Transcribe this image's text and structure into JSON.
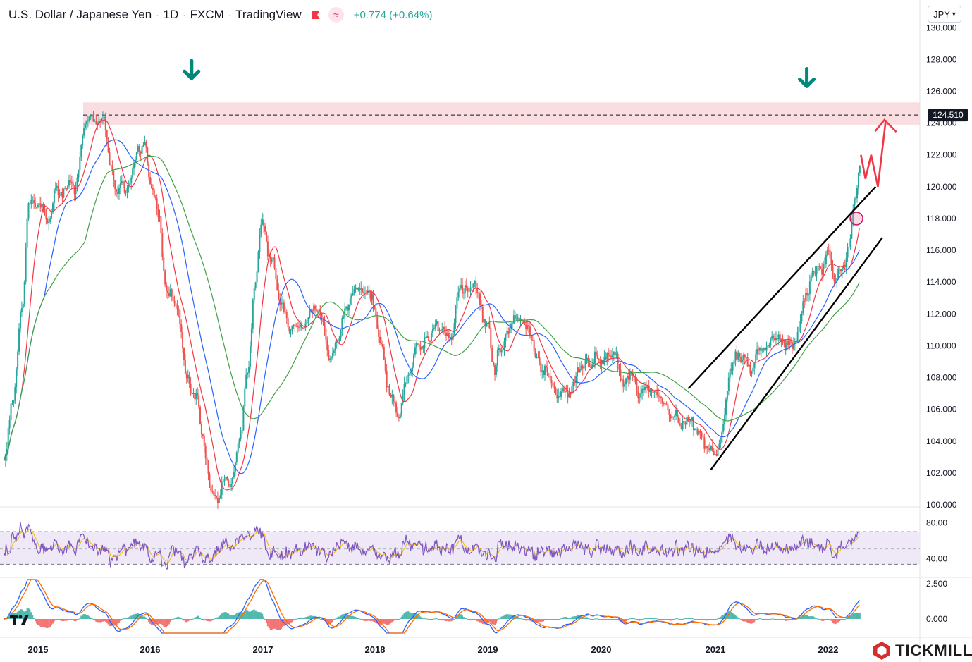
{
  "header": {
    "symbol": "U.S. Dollar / Japanese Yen",
    "interval": "1D",
    "exchange": "FXCM",
    "source": "TradingView",
    "change": "+0.774 (+0.64%)"
  },
  "currency_button": {
    "label": "JPY"
  },
  "watermark": {
    "brand": "TICKMILL"
  },
  "colors": {
    "candle_up": "#26a69a",
    "candle_down": "#ef5350",
    "ma_fast": "#f23645",
    "ma_mid": "#2962ff",
    "ma_slow": "#43a047",
    "rsi": "#7e57c2",
    "rsi_signal": "#f5b800",
    "zone_fill": "#f8d7da",
    "forecast": "#f23645"
  },
  "chart_data": [
    {
      "type": "candlestick",
      "name": "price",
      "title": "U.S. Dollar / Japanese Yen",
      "ylim": [
        100,
        130.5
      ],
      "yticks": [
        "100.000",
        "102.000",
        "104.000",
        "106.000",
        "108.000",
        "110.000",
        "112.000",
        "114.000",
        "116.000",
        "118.000",
        "120.000",
        "122.000",
        "124.000",
        "126.000",
        "128.000",
        "130.000"
      ],
      "xticks": [
        "2015",
        "2016",
        "2017",
        "2018",
        "2019",
        "2020",
        "2021",
        "2022"
      ],
      "x_range": [
        2014.7,
        2023.0
      ],
      "close_path": [
        [
          2014.7,
          103.0
        ],
        [
          2014.78,
          107.0
        ],
        [
          2014.86,
          112.0
        ],
        [
          2014.92,
          119.0
        ],
        [
          2015.0,
          119.5
        ],
        [
          2015.08,
          118.0
        ],
        [
          2015.16,
          120.0
        ],
        [
          2015.24,
          119.8
        ],
        [
          2015.32,
          119.5
        ],
        [
          2015.4,
          123.8
        ],
        [
          2015.46,
          124.3
        ],
        [
          2015.52,
          123.5
        ],
        [
          2015.58,
          124.2
        ],
        [
          2015.64,
          121.5
        ],
        [
          2015.7,
          120.0
        ],
        [
          2015.8,
          120.5
        ],
        [
          2015.88,
          122.8
        ],
        [
          2015.94,
          122.8
        ],
        [
          2016.0,
          120.0
        ],
        [
          2016.06,
          118.0
        ],
        [
          2016.14,
          113.5
        ],
        [
          2016.24,
          112.5
        ],
        [
          2016.32,
          108.5
        ],
        [
          2016.4,
          106.5
        ],
        [
          2016.46,
          103.5
        ],
        [
          2016.54,
          101.5
        ],
        [
          2016.62,
          101.5
        ],
        [
          2016.7,
          101.0
        ],
        [
          2016.78,
          104.0
        ],
        [
          2016.86,
          108.5
        ],
        [
          2016.92,
          113.0
        ],
        [
          2016.98,
          117.5
        ],
        [
          2017.06,
          114.5
        ],
        [
          2017.14,
          112.5
        ],
        [
          2017.24,
          110.5
        ],
        [
          2017.32,
          111.5
        ],
        [
          2017.42,
          113.0
        ],
        [
          2017.5,
          112.5
        ],
        [
          2017.58,
          109.5
        ],
        [
          2017.66,
          110.5
        ],
        [
          2017.74,
          112.5
        ],
        [
          2017.84,
          113.5
        ],
        [
          2017.94,
          113.0
        ],
        [
          2018.04,
          110.5
        ],
        [
          2018.12,
          107.0
        ],
        [
          2018.2,
          106.0
        ],
        [
          2018.28,
          108.5
        ],
        [
          2018.36,
          110.0
        ],
        [
          2018.46,
          110.5
        ],
        [
          2018.54,
          111.5
        ],
        [
          2018.64,
          111.0
        ],
        [
          2018.74,
          113.0
        ],
        [
          2018.84,
          113.5
        ],
        [
          2018.96,
          111.0
        ],
        [
          2019.04,
          108.5
        ],
        [
          2019.12,
          110.5
        ],
        [
          2019.22,
          111.5
        ],
        [
          2019.32,
          111.0
        ],
        [
          2019.42,
          108.5
        ],
        [
          2019.5,
          108.0
        ],
        [
          2019.6,
          106.5
        ],
        [
          2019.7,
          107.5
        ],
        [
          2019.8,
          108.5
        ],
        [
          2019.9,
          109.0
        ],
        [
          2020.0,
          109.5
        ],
        [
          2020.1,
          110.0
        ],
        [
          2020.2,
          107.5
        ],
        [
          2020.26,
          108.5
        ],
        [
          2020.34,
          107.0
        ],
        [
          2020.44,
          107.5
        ],
        [
          2020.54,
          106.0
        ],
        [
          2020.64,
          105.5
        ],
        [
          2020.74,
          105.0
        ],
        [
          2020.84,
          104.5
        ],
        [
          2020.94,
          103.5
        ],
        [
          2021.0,
          103.2
        ],
        [
          2021.06,
          105.0
        ],
        [
          2021.14,
          108.5
        ],
        [
          2021.22,
          109.5
        ],
        [
          2021.3,
          108.8
        ],
        [
          2021.4,
          110.0
        ],
        [
          2021.5,
          110.5
        ],
        [
          2021.6,
          109.8
        ],
        [
          2021.7,
          110.0
        ],
        [
          2021.78,
          112.5
        ],
        [
          2021.86,
          114.0
        ],
        [
          2021.92,
          113.5
        ],
        [
          2022.0,
          115.5
        ],
        [
          2022.06,
          114.5
        ],
        [
          2022.12,
          115.0
        ],
        [
          2022.18,
          116.5
        ],
        [
          2022.24,
          119.0
        ],
        [
          2022.28,
          121.5
        ]
      ],
      "resistance_zone": [
        123.9,
        125.3
      ],
      "level_line": {
        "value": 124.51,
        "label": "124.510"
      },
      "channel_lines": [
        {
          "from": [
            2020.76,
            107.3
          ],
          "to": [
            2022.42,
            120.0
          ]
        },
        {
          "from": [
            2020.96,
            102.2
          ],
          "to": [
            2022.48,
            116.8
          ]
        }
      ],
      "forecast_path": [
        [
          2022.29,
          122.0
        ],
        [
          2022.33,
          120.5
        ],
        [
          2022.38,
          122.0
        ],
        [
          2022.44,
          120.0
        ],
        [
          2022.51,
          124.2
        ]
      ],
      "markers": [
        {
          "type": "down-arrow",
          "x": 2016.36,
          "y": 127.3
        },
        {
          "type": "down-arrow",
          "x": 2021.81,
          "y": 126.8
        },
        {
          "type": "circle",
          "x": 2022.25,
          "y": 118.0
        }
      ]
    },
    {
      "type": "line",
      "name": "RSI",
      "ylim": [
        25,
        95
      ],
      "yticks": [
        "40.00",
        "80.00"
      ],
      "bands": [
        34,
        70
      ],
      "midline": 51
    },
    {
      "type": "line",
      "name": "MACD",
      "ylim": [
        -1.0,
        2.8
      ],
      "yticks": [
        "0.000",
        "2.500"
      ]
    }
  ]
}
